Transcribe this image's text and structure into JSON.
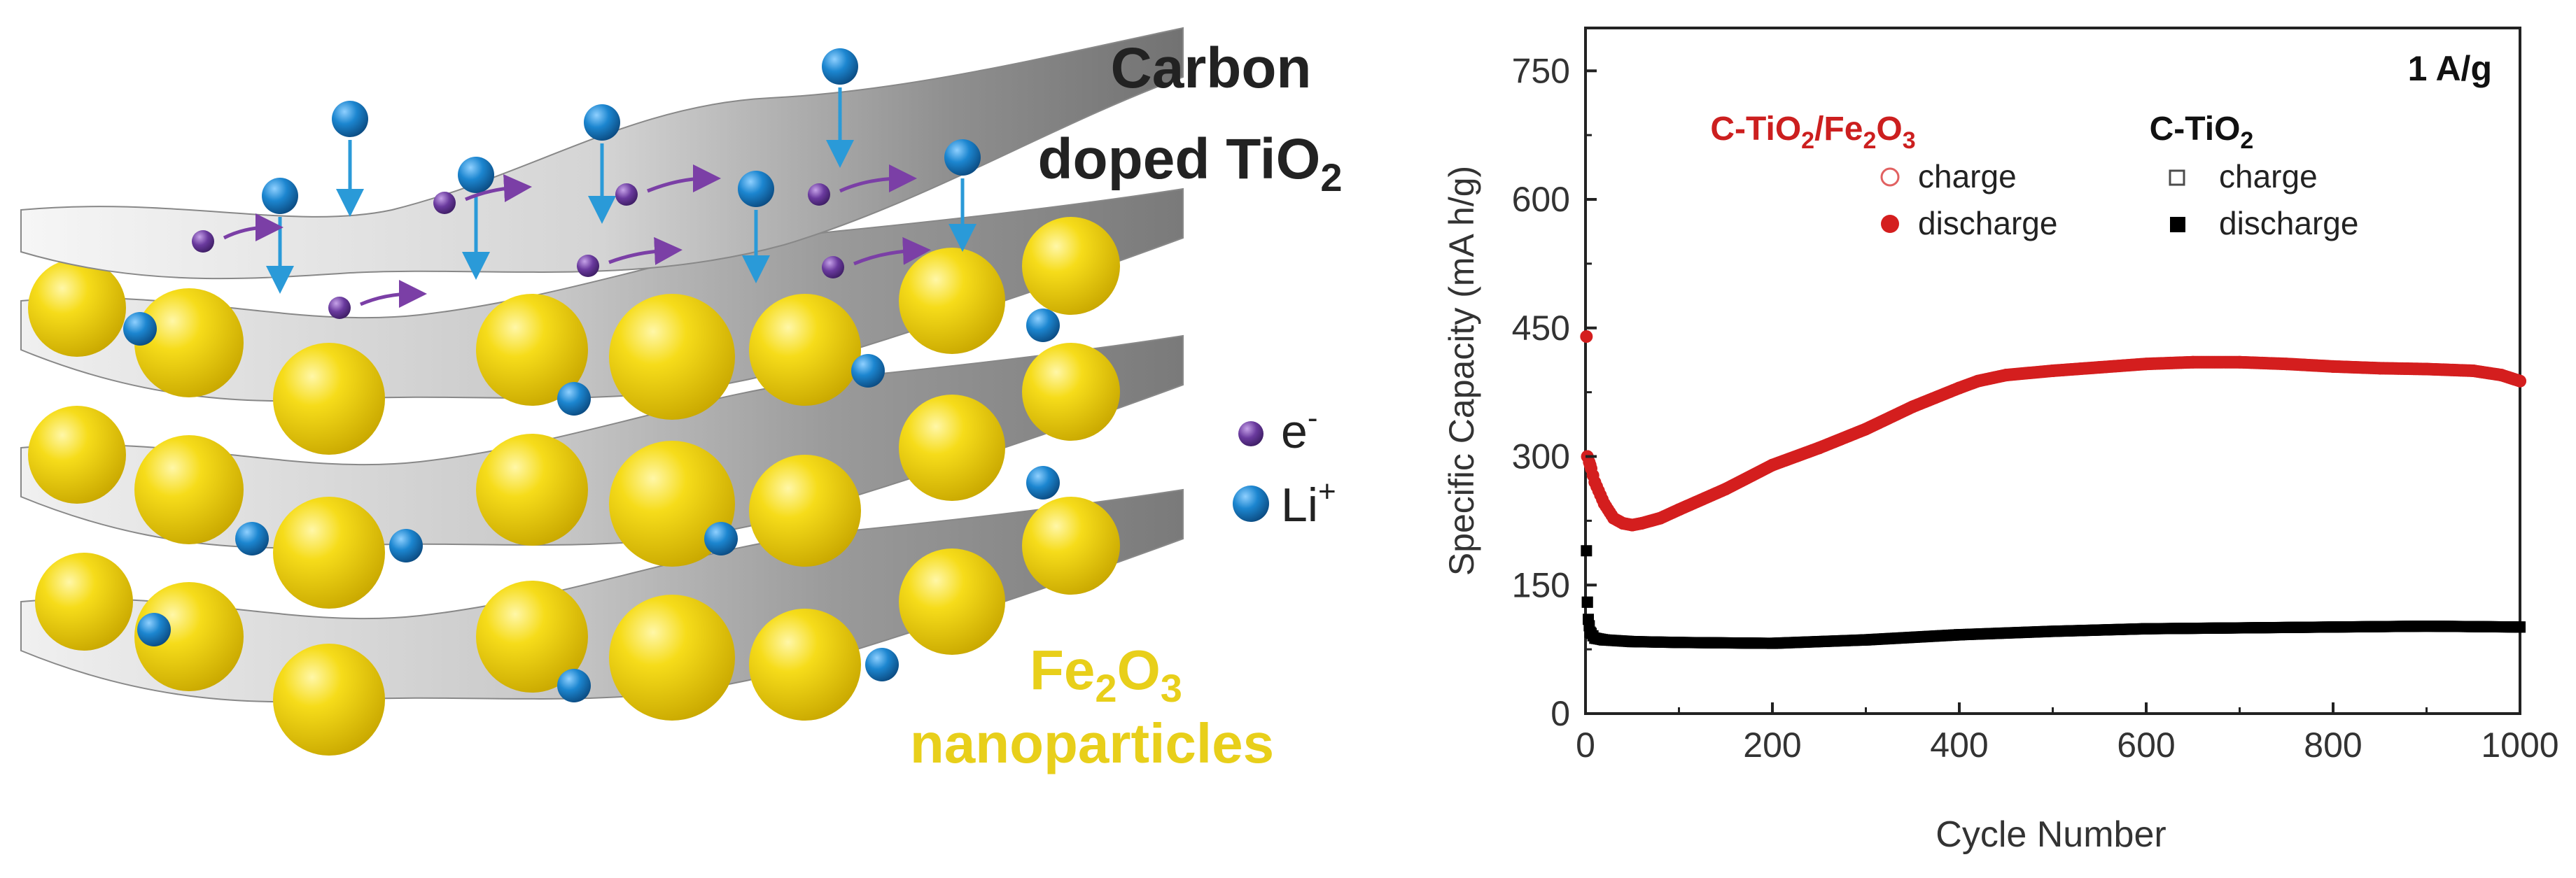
{
  "schematic": {
    "title_line1": "Carbon",
    "title_line2_main": "doped TiO",
    "title_line2_sub": "2",
    "legend_electron_base": "e",
    "legend_electron_sup": "-",
    "legend_li_base": "Li",
    "legend_li_sup": "+",
    "np_label_line1_main": "Fe",
    "np_label_line1_sub1": "2",
    "np_label_line1_mid": "O",
    "np_label_line1_sub2": "3",
    "np_label_line2": "nanoparticles",
    "colors": {
      "sheet": "#b9b9b9",
      "particle": "#f2d40a",
      "li_ion": "#1f88cf",
      "electron": "#6b3fa0",
      "arrow_blue": "#2a9ad8",
      "arrow_purple": "#7b3fa6",
      "np_text": "#e8cf1a"
    }
  },
  "chart_data": {
    "type": "scatter",
    "title": "1 A/g",
    "xlabel": "Cycle Number",
    "ylabel": "Specific Capacity (mA h/g)",
    "xlim": [
      0,
      1000
    ],
    "ylim": [
      0,
      800
    ],
    "xticks": [
      "0",
      "200",
      "400",
      "600",
      "800",
      "1000"
    ],
    "yticks": [
      "0",
      "150",
      "300",
      "450",
      "600",
      "750"
    ],
    "legend": {
      "group1": {
        "main": "C-TiO",
        "sub1": "2",
        "mid": "/Fe",
        "sub2": "2",
        "end": "O",
        "sub3": "3",
        "color": "#cc1f1f"
      },
      "group2": {
        "main": "C-TiO",
        "sub1": "2",
        "color": "#000000"
      },
      "charge_label": "charge",
      "discharge_label": "discharge"
    },
    "series": [
      {
        "name": "C-TiO2/Fe2O3 discharge",
        "color": "#d41e1e",
        "points": [
          [
            1,
            440
          ],
          [
            2,
            300
          ],
          [
            5,
            290
          ],
          [
            10,
            270
          ],
          [
            20,
            245
          ],
          [
            30,
            228
          ],
          [
            40,
            222
          ],
          [
            50,
            220
          ],
          [
            60,
            222
          ],
          [
            80,
            228
          ],
          [
            100,
            238
          ],
          [
            150,
            262
          ],
          [
            200,
            290
          ],
          [
            250,
            310
          ],
          [
            300,
            332
          ],
          [
            350,
            358
          ],
          [
            400,
            380
          ],
          [
            420,
            388
          ],
          [
            450,
            395
          ],
          [
            500,
            400
          ],
          [
            550,
            404
          ],
          [
            600,
            408
          ],
          [
            650,
            410
          ],
          [
            700,
            410
          ],
          [
            750,
            408
          ],
          [
            800,
            405
          ],
          [
            850,
            403
          ],
          [
            900,
            402
          ],
          [
            950,
            400
          ],
          [
            980,
            395
          ],
          [
            1000,
            388
          ]
        ]
      },
      {
        "name": "C-TiO2 discharge",
        "color": "#000000",
        "points": [
          [
            1,
            190
          ],
          [
            2,
            130
          ],
          [
            3,
            110
          ],
          [
            5,
            95
          ],
          [
            10,
            88
          ],
          [
            20,
            86
          ],
          [
            50,
            84
          ],
          [
            100,
            83
          ],
          [
            200,
            82
          ],
          [
            300,
            86
          ],
          [
            400,
            92
          ],
          [
            500,
            96
          ],
          [
            600,
            99
          ],
          [
            700,
            100
          ],
          [
            800,
            101
          ],
          [
            900,
            102
          ],
          [
            1000,
            101
          ]
        ]
      }
    ]
  }
}
